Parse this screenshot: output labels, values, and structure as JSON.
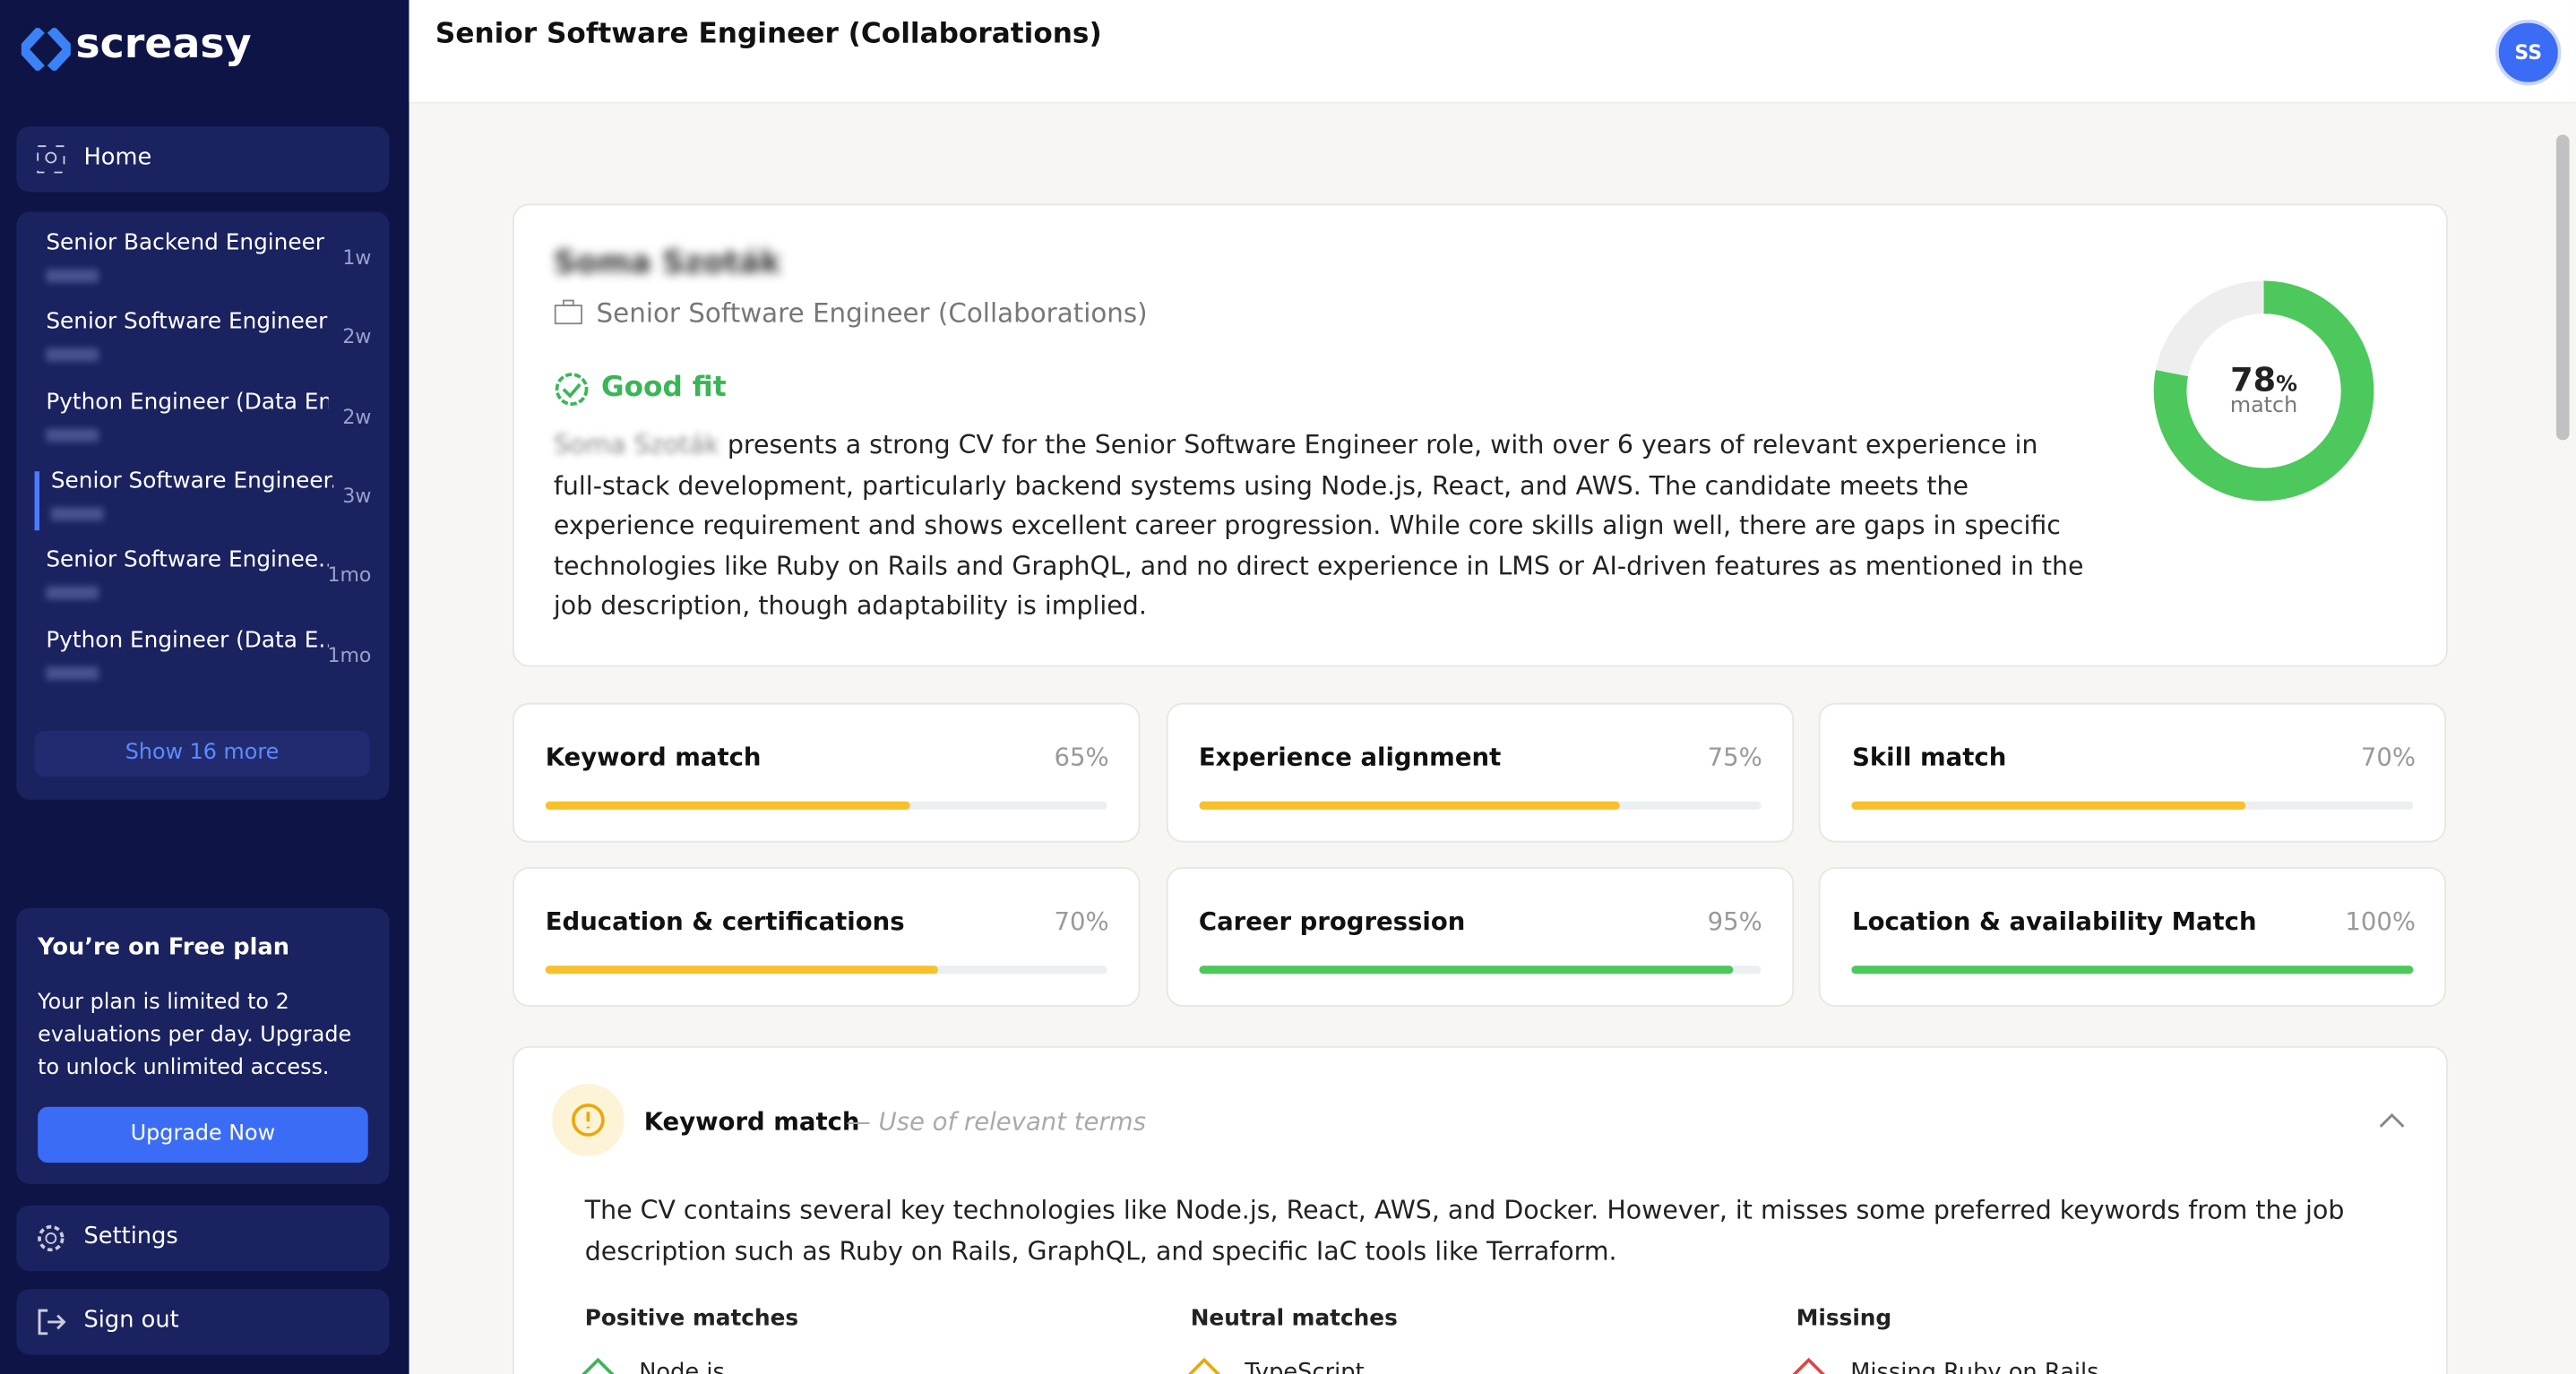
{
  "brand": "screasy",
  "header": {
    "title": "Senior Software Engineer (Collaborations)",
    "avatar": "SS"
  },
  "nav": {
    "home": "Home",
    "show_more": "Show 16 more",
    "settings": "Settings",
    "sign_out": "Sign out"
  },
  "history": [
    {
      "title": "Senior Backend Engineer ...",
      "age": "1w"
    },
    {
      "title": "Senior Software Engineer ...",
      "age": "2w"
    },
    {
      "title": "Python Engineer (Data En...",
      "age": "2w"
    },
    {
      "title": "Senior Software Engineer...",
      "age": "3w"
    },
    {
      "title": "Senior Software Enginee...",
      "age": "1mo"
    },
    {
      "title": "Python Engineer (Data E...",
      "age": "1mo"
    }
  ],
  "plan": {
    "title": "You’re on Free plan",
    "text": "Your plan is limited to 2 evaluations per day. Upgrade to unlock unlimited access.",
    "button": "Upgrade Now"
  },
  "candidate": {
    "name": "Soma Szoták",
    "role": "Senior Software Engineer (Collaborations)",
    "fit": "Good fit",
    "summary_name": "Soma Szoták",
    "summary": "presents a strong CV for the Senior Software Engineer role, with over 6 years of relevant experience in full-stack development, particularly backend systems using Node.js, React, and AWS. The candidate meets the experience requirement and shows excellent career progression. While core skills align well, there are gaps in specific technologies like Ruby on Rails and GraphQL, and no direct experience in LMS or AI-driven features as mentioned in the job description, though adaptability is implied.",
    "score": 78,
    "score_suffix": "%",
    "score_caption": "match"
  },
  "metrics": [
    {
      "name": "Keyword match",
      "value": 65,
      "label": "65%",
      "color": "#f7c12c"
    },
    {
      "name": "Experience alignment",
      "value": 75,
      "label": "75%",
      "color": "#f7c12c"
    },
    {
      "name": "Skill match",
      "value": 70,
      "label": "70%",
      "color": "#f7c12c"
    },
    {
      "name": "Education & certifications",
      "value": 70,
      "label": "70%",
      "color": "#f7c12c"
    },
    {
      "name": "Career progression",
      "value": 95,
      "label": "95%",
      "color": "#4cc85c"
    },
    {
      "name": "Location & availability Match",
      "value": 100,
      "label": "100%",
      "color": "#4cc85c"
    }
  ],
  "detail": {
    "title": "Keyword match",
    "subtitle": "Use of relevant terms",
    "text": "The CV contains several key technologies like Node.js, React, AWS, and Docker. However, it misses some preferred keywords from the job description such as Ruby on Rails, GraphQL, and specific IaC tools like Terraform.",
    "columns": [
      {
        "title": "Positive matches",
        "first": "Node.js"
      },
      {
        "title": "Neutral matches",
        "first": "TypeScript"
      },
      {
        "title": "Missing",
        "first": "Missing Ruby on Rails"
      }
    ]
  }
}
